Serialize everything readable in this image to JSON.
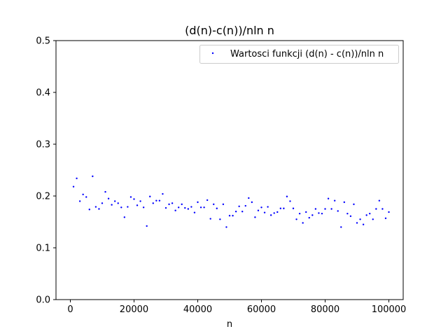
{
  "chart_data": {
    "type": "scatter",
    "title": "(d(n)-c(n))/nln n",
    "xlabel": "n",
    "ylabel": "",
    "xlim": [
      -4500,
      104500
    ],
    "ylim": [
      0.0,
      0.5
    ],
    "grid": false,
    "legend_position": "top-right",
    "x_ticks": [
      0,
      20000,
      40000,
      60000,
      80000,
      100000
    ],
    "x_tick_labels": [
      "0",
      "20000",
      "40000",
      "60000",
      "80000",
      "100000"
    ],
    "y_ticks": [
      0.0,
      0.1,
      0.2,
      0.3,
      0.4,
      0.5
    ],
    "y_tick_labels": [
      "0.0",
      "0.1",
      "0.2",
      "0.3",
      "0.4",
      "0.5"
    ],
    "series": [
      {
        "name": "Wartosci funkcji (d(n) - c(n))/nln n",
        "color": "#0000ff",
        "marker": "point",
        "x": [
          1000,
          2000,
          3000,
          4000,
          5000,
          6000,
          7000,
          8000,
          9000,
          10000,
          11000,
          12000,
          13000,
          14000,
          15000,
          16000,
          17000,
          18000,
          19000,
          20000,
          21000,
          22000,
          23000,
          24000,
          25000,
          26000,
          27000,
          28000,
          29000,
          30000,
          31000,
          32000,
          33000,
          34000,
          35000,
          36000,
          37000,
          38000,
          39000,
          40000,
          41000,
          42000,
          43000,
          44000,
          45000,
          46000,
          47000,
          48000,
          49000,
          50000,
          51000,
          52000,
          53000,
          54000,
          55000,
          56000,
          57000,
          58000,
          59000,
          60000,
          61000,
          62000,
          63000,
          64000,
          65000,
          66000,
          67000,
          68000,
          69000,
          70000,
          71000,
          72000,
          73000,
          74000,
          75000,
          76000,
          77000,
          78000,
          79000,
          80000,
          81000,
          82000,
          83000,
          84000,
          85000,
          86000,
          87000,
          88000,
          89000,
          90000,
          91000,
          92000,
          93000,
          94000,
          95000,
          96000,
          97000,
          98000,
          99000,
          100000
        ],
        "y": [
          0.218,
          0.234,
          0.19,
          0.203,
          0.198,
          0.174,
          0.238,
          0.179,
          0.175,
          0.186,
          0.208,
          0.195,
          0.183,
          0.19,
          0.186,
          0.178,
          0.159,
          0.179,
          0.198,
          0.194,
          0.182,
          0.19,
          0.178,
          0.142,
          0.199,
          0.186,
          0.191,
          0.191,
          0.204,
          0.177,
          0.184,
          0.186,
          0.172,
          0.178,
          0.184,
          0.177,
          0.175,
          0.179,
          0.168,
          0.188,
          0.178,
          0.178,
          0.192,
          0.156,
          0.184,
          0.176,
          0.155,
          0.184,
          0.14,
          0.162,
          0.162,
          0.17,
          0.18,
          0.17,
          0.181,
          0.196,
          0.188,
          0.159,
          0.172,
          0.178,
          0.168,
          0.179,
          0.163,
          0.167,
          0.169,
          0.176,
          0.176,
          0.199,
          0.19,
          0.176,
          0.155,
          0.166,
          0.148,
          0.169,
          0.158,
          0.163,
          0.175,
          0.167,
          0.166,
          0.175,
          0.195,
          0.175,
          0.191,
          0.171,
          0.14,
          0.188,
          0.166,
          0.161,
          0.184,
          0.148,
          0.155,
          0.145,
          0.163,
          0.166,
          0.155,
          0.175,
          0.191,
          0.175,
          0.157,
          0.169
        ]
      }
    ]
  }
}
